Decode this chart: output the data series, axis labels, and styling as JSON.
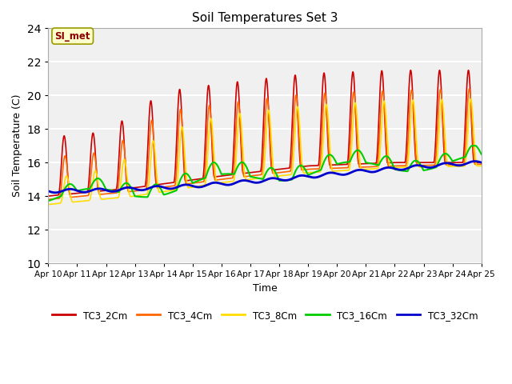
{
  "title": "Soil Temperatures Set 3",
  "xlabel": "Time",
  "ylabel": "Soil Temperature (C)",
  "ylim": [
    10,
    24
  ],
  "xlim": [
    0,
    15
  ],
  "colors": {
    "TC3_2Cm": "#cc0000",
    "TC3_4Cm": "#ff6600",
    "TC3_8Cm": "#ffdd00",
    "TC3_16Cm": "#00cc00",
    "TC3_32Cm": "#0000cc"
  },
  "legend_label": "SI_met",
  "tick_labels": [
    "Apr 10",
    "Apr 11",
    "Apr 12",
    "Apr 13",
    "Apr 14",
    "Apr 15",
    "Apr 16",
    "Apr 17",
    "Apr 18",
    "Apr 19",
    "Apr 20",
    "Apr 21",
    "Apr 22",
    "Apr 23",
    "Apr 24",
    "Apr 25"
  ]
}
